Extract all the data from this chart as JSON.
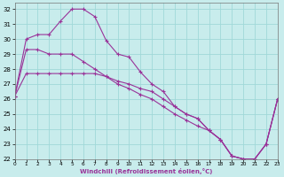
{
  "xlabel": "Windchill (Refroidissement éolien,°C)",
  "bg_color": "#c8ecec",
  "grid_color": "#a0d8d8",
  "line_color": "#993399",
  "xlim": [
    0,
    23
  ],
  "ylim": [
    22,
    32.4
  ],
  "yticks": [
    22,
    23,
    24,
    25,
    26,
    27,
    28,
    29,
    30,
    31,
    32
  ],
  "xticks": [
    0,
    1,
    2,
    3,
    4,
    5,
    6,
    7,
    8,
    9,
    10,
    11,
    12,
    13,
    14,
    15,
    16,
    17,
    18,
    19,
    20,
    21,
    22,
    23
  ],
  "series": [
    {
      "x": [
        0,
        1,
        2,
        3,
        4,
        5,
        6,
        7,
        8,
        9,
        10,
        11,
        12,
        13,
        14,
        15,
        16,
        17,
        18,
        19,
        20,
        21,
        22,
        23
      ],
      "y": [
        26.2,
        30.0,
        30.3,
        30.3,
        31.2,
        32.0,
        32.0,
        31.5,
        29.9,
        29.0,
        28.8,
        27.8,
        27.0,
        26.5,
        25.5,
        25.0,
        24.7,
        23.9,
        23.3,
        22.2,
        22.0,
        22.0,
        23.0,
        26.0
      ]
    },
    {
      "x": [
        0,
        1,
        2,
        3,
        4,
        5,
        6,
        7,
        8,
        9,
        10,
        11,
        12,
        13,
        14,
        15,
        16,
        17,
        18,
        19,
        20,
        21,
        22,
        23
      ],
      "y": [
        26.2,
        27.7,
        27.7,
        27.7,
        27.7,
        27.7,
        27.7,
        27.7,
        27.5,
        27.2,
        27.0,
        26.7,
        26.5,
        26.0,
        25.5,
        25.0,
        24.7,
        23.9,
        23.3,
        22.2,
        22.0,
        22.0,
        23.0,
        26.0
      ]
    },
    {
      "x": [
        0,
        1,
        2,
        3,
        4,
        5,
        6,
        7,
        8,
        9,
        10,
        11,
        12,
        13,
        14,
        15,
        16,
        17,
        18,
        19,
        20,
        21,
        22,
        23
      ],
      "y": [
        26.2,
        29.3,
        29.3,
        29.0,
        29.0,
        29.0,
        28.5,
        28.0,
        27.5,
        27.0,
        26.7,
        26.3,
        26.0,
        25.5,
        25.0,
        24.6,
        24.2,
        23.9,
        23.3,
        22.2,
        22.0,
        22.0,
        23.0,
        26.0
      ]
    }
  ]
}
